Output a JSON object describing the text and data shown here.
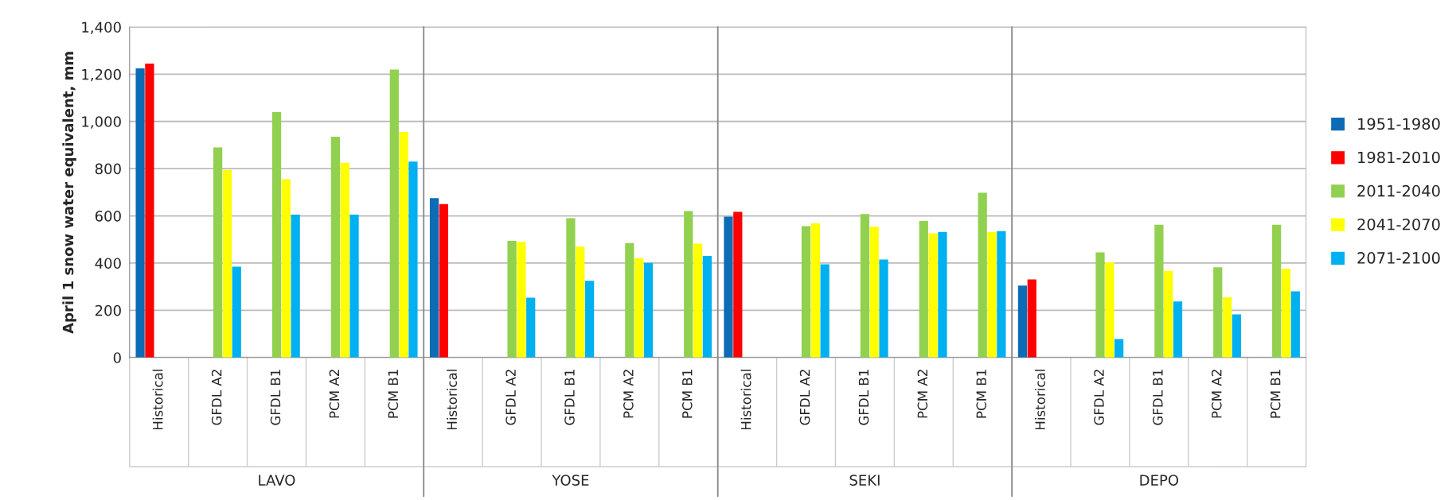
{
  "chart_data": {
    "type": "bar",
    "ylabel": "April 1 snow water equivalent, mm",
    "categories": [
      "Historical",
      "GFDL A2",
      "GFDL B1",
      "PCM A2",
      "PCM B1",
      "Historical",
      "GFDL A2",
      "GFDL B1",
      "PCM A2",
      "PCM B1",
      "Historical",
      "GFDL A2",
      "GFDL B1",
      "PCM A2",
      "PCM B1",
      "Historical",
      "GFDL A2",
      "GFDL B1",
      "PCM A2",
      "PCM B1"
    ],
    "annotations": [
      "LAVO",
      "YOSE",
      "SEKI",
      "DEPO"
    ],
    "series": [
      {
        "name": "1951-1980",
        "color": "#0e6bb5",
        "values": [
          1225,
          null,
          null,
          null,
          null,
          675,
          null,
          null,
          null,
          null,
          597,
          null,
          null,
          null,
          null,
          305,
          null,
          null,
          null,
          null
        ]
      },
      {
        "name": "1981-2010",
        "color": "#ff0000",
        "values": [
          1245,
          null,
          null,
          null,
          null,
          650,
          null,
          null,
          null,
          null,
          617,
          null,
          null,
          null,
          null,
          331,
          null,
          null,
          null,
          null
        ]
      },
      {
        "name": "2011-2040",
        "color": "#92d050",
        "values": [
          null,
          890,
          1040,
          935,
          1220,
          null,
          494,
          590,
          485,
          620,
          null,
          556,
          608,
          578,
          698,
          null,
          445,
          562,
          382,
          562
        ]
      },
      {
        "name": "2041-2070",
        "color": "#ffff00",
        "values": [
          null,
          795,
          755,
          825,
          955,
          null,
          490,
          470,
          421,
          482,
          null,
          568,
          554,
          526,
          532,
          null,
          403,
          367,
          255,
          376
        ]
      },
      {
        "name": "2071-2100",
        "color": "#00b0f0",
        "values": [
          null,
          385,
          605,
          605,
          830,
          null,
          253,
          325,
          401,
          430,
          null,
          395,
          415,
          532,
          535,
          null,
          78,
          237,
          183,
          280
        ]
      }
    ],
    "ylim": [
      0,
      1400
    ],
    "yticks": [
      0,
      {
        "value": 200,
        "label": "200"
      },
      {
        "value": 400,
        "label": "400"
      },
      {
        "value": 600,
        "label": "600"
      },
      {
        "value": 800,
        "label": "800"
      },
      {
        "value": 1000,
        "label": "1,000"
      },
      {
        "value": 1200,
        "label": "1,200"
      },
      {
        "value": 1400,
        "label": "1,400"
      }
    ],
    "grid": "y",
    "legend": "right"
  }
}
